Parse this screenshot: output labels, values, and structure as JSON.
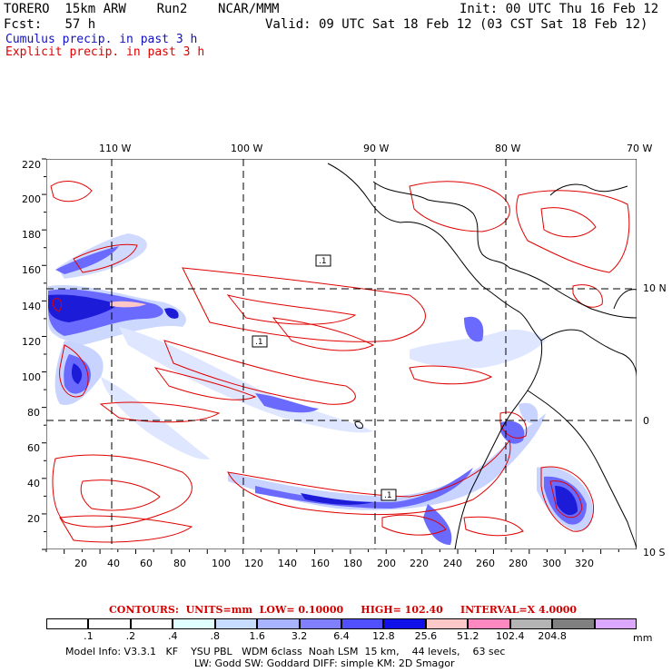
{
  "header": {
    "model": "TORERO  15km ARW",
    "run": "Run2",
    "org": "NCAR/MMM",
    "init": "Init: 00 UTC Thu 16 Feb 12",
    "fcst_label": "Fcst:",
    "fcst_value": "57 h",
    "valid": "Valid: 09 UTC Sat 18 Feb 12 (03 CST Sat 18 Feb 12)",
    "legend_cumulus": "Cumulus precip. in past 3 h",
    "legend_explicit": "Explicit precip. in past 3 h"
  },
  "colors": {
    "cumulus_text": "#1010c0",
    "explicit_text": "#e00000",
    "contour_red": "#e00000",
    "precip_light": "#c8d4ff",
    "precip_mid": "#7a7aff",
    "precip_dark": "#1b1bd8"
  },
  "map": {
    "top_lon_labels": [
      "110 W",
      "100 W",
      "90 W",
      "80 W",
      "70 W"
    ],
    "right_lat_labels": [
      "10 N",
      "0",
      "10 S"
    ],
    "y_ticks": [
      "220",
      "200",
      "180",
      "160",
      "140",
      "120",
      "100",
      "80",
      "60",
      "40",
      "20"
    ],
    "x_ticks": [
      "20",
      "40",
      "60",
      "80",
      "100",
      "120",
      "140",
      "160",
      "180",
      "200",
      "220",
      "240",
      "260",
      "280",
      "300",
      "320"
    ],
    "box_labels": [
      ".1",
      ".1",
      ".1"
    ]
  },
  "contour_line": {
    "contours": "CONTOURS:",
    "units": "UNITS=mm",
    "low": "LOW= 0.10000",
    "high": "HIGH= 102.40",
    "interval": "INTERVAL=X 4.0000"
  },
  "colorbar": {
    "labels": [
      ".1",
      ".2",
      ".4",
      ".8",
      "1.6",
      "3.2",
      "6.4",
      "12.8",
      "25.6",
      "51.2",
      "102.4",
      "204.8"
    ],
    "unit": "mm",
    "colors": [
      "#ffffff",
      "#ffffff",
      "#ffffff",
      "#e0ffff",
      "#c8dcff",
      "#a8b4ff",
      "#8080ff",
      "#5050ff",
      "#1010e8",
      "#ffc8c8",
      "#ff88c0",
      "#b4b4b4",
      "#808080",
      "#dca8ff"
    ]
  },
  "footer": {
    "line1": "Model Info: V3.3.1   KF    YSU PBL   WDM 6class  Noah LSM  15 km,    44 levels,    63 sec",
    "line2": "LW: Godd SW: Goddard DIFF: simple KM: 2D Smagor"
  }
}
